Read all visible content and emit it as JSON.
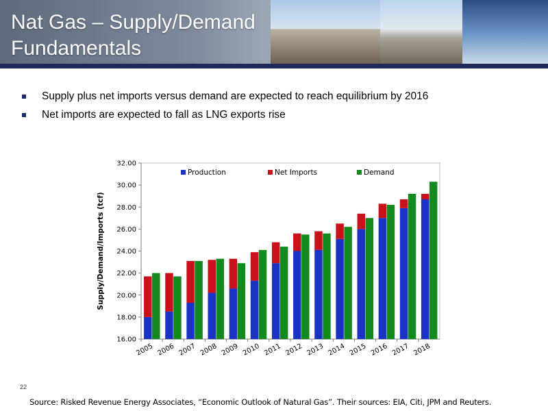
{
  "slide": {
    "title_line1": "Nat Gas – Supply/Demand",
    "title_line2": "Fundamentals",
    "bullets": [
      "Supply plus net imports versus demand are expected to reach equilibrium by 2016",
      "Net imports are expected to fall as LNG exports rise"
    ],
    "page_number": "22",
    "source": "Source: Risked Revenue Energy Associates, “Economic Outlook of Natural Gas”. Their sources: EIA, Citi, JPM and Reuters."
  },
  "colors": {
    "production": "#1a33c4",
    "net_imports": "#c8111a",
    "demand": "#138a1d",
    "title_bar": "#23285c"
  },
  "chart_data": {
    "type": "bar",
    "stacked_series": [
      "Production",
      "Net Imports"
    ],
    "categories": [
      "2005",
      "2006",
      "2007",
      "2008",
      "2009",
      "2010",
      "2011",
      "2012",
      "2013",
      "2014",
      "2015",
      "2016",
      "2017",
      "2018"
    ],
    "series": [
      {
        "name": "Production",
        "values": [
          18.0,
          18.5,
          19.3,
          20.2,
          20.6,
          21.3,
          22.9,
          24.0,
          24.1,
          25.1,
          26.0,
          27.0,
          27.9,
          28.7
        ]
      },
      {
        "name": "Net Imports",
        "values": [
          3.7,
          3.5,
          3.8,
          3.0,
          2.7,
          2.6,
          1.9,
          1.6,
          1.7,
          1.4,
          1.4,
          1.3,
          0.8,
          0.5
        ]
      },
      {
        "name": "Demand",
        "values": [
          22.0,
          21.7,
          23.1,
          23.3,
          22.9,
          24.1,
          24.4,
          25.5,
          25.6,
          26.2,
          27.0,
          28.2,
          29.2,
          30.3
        ]
      }
    ],
    "title": "",
    "xlabel": "",
    "ylabel": "Supply/Demand/Imports (tcf)",
    "ylim": [
      16,
      32
    ],
    "yticks": [
      "16.00",
      "18.00",
      "20.00",
      "22.00",
      "24.00",
      "26.00",
      "28.00",
      "30.00",
      "32.00"
    ],
    "grid": false,
    "legend": "top"
  }
}
